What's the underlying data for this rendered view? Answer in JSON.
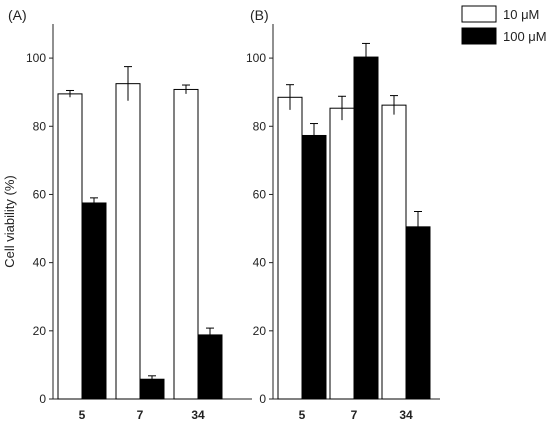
{
  "chart_data": [
    {
      "type": "bar",
      "panel_label": "(A)",
      "ylabel": "Cell viability (%)",
      "ylim": [
        0,
        110
      ],
      "yticks": [
        0,
        20,
        40,
        60,
        80,
        100
      ],
      "categories": [
        "5",
        "7",
        "34"
      ],
      "series": [
        {
          "name": "10 μM",
          "values": [
            89.5,
            92.5,
            90.8
          ],
          "errors": [
            1.0,
            5.0,
            1.3
          ]
        },
        {
          "name": "100 μM",
          "values": [
            57.5,
            5.8,
            18.8
          ],
          "errors": [
            1.5,
            1.0,
            2.0
          ]
        }
      ]
    },
    {
      "type": "bar",
      "panel_label": "(B)",
      "ylabel": "",
      "ylim": [
        0,
        110
      ],
      "yticks": [
        0,
        20,
        40,
        60,
        80,
        100
      ],
      "categories": [
        "5",
        "7",
        "34"
      ],
      "series": [
        {
          "name": "10 μM",
          "values": [
            88.5,
            85.3,
            86.2
          ],
          "errors": [
            3.7,
            3.5,
            2.8
          ]
        },
        {
          "name": "100 μM",
          "values": [
            77.3,
            100.3,
            50.5
          ],
          "errors": [
            3.5,
            4.0,
            4.5
          ]
        }
      ]
    }
  ],
  "legend": {
    "position": "top-right",
    "items": [
      {
        "label": "10 μM",
        "fill": "#ffffff"
      },
      {
        "label": "100 μM",
        "fill": "#000000"
      }
    ]
  },
  "colors": {
    "bar_10uM": "#ffffff",
    "bar_100uM": "#000000",
    "axis": "#222222"
  }
}
